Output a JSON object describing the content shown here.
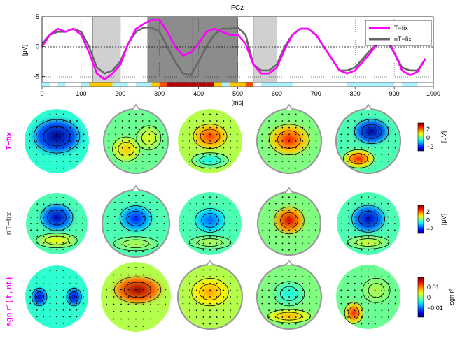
{
  "chart_data": {
    "type": "line",
    "title": "FCz",
    "xlabel": "[ms]",
    "ylabel": "[μV]",
    "xlim": [
      0,
      1000
    ],
    "ylim": [
      -6,
      5
    ],
    "xticks": [
      "0",
      "100",
      "200",
      "300",
      "400",
      "500",
      "600",
      "700",
      "800",
      "900",
      "1000"
    ],
    "yticks": [
      "5",
      "0",
      "-5"
    ],
    "x": [
      0,
      20,
      40,
      60,
      80,
      100,
      120,
      140,
      160,
      180,
      200,
      220,
      240,
      260,
      280,
      300,
      320,
      340,
      360,
      380,
      400,
      420,
      440,
      460,
      480,
      500,
      520,
      540,
      560,
      580,
      600,
      620,
      640,
      660,
      680,
      700,
      720,
      740,
      760,
      780,
      800,
      820,
      840,
      860,
      880,
      900,
      920,
      940,
      960,
      980
    ],
    "series": [
      {
        "name": "T−fix",
        "color": "#ff00ff",
        "values": [
          0,
          2,
          3,
          2.5,
          3,
          2,
          -1,
          -4.5,
          -5.5,
          -4.5,
          -3,
          0.5,
          3,
          3.8,
          4.5,
          4.5,
          2.5,
          0,
          -1.5,
          -1,
          0.5,
          2.5,
          3,
          2.5,
          2,
          2,
          0.5,
          -3,
          -4.5,
          -4.5,
          -3.5,
          -0.5,
          2,
          3,
          3,
          2,
          0,
          -2,
          -4,
          -4.5,
          -4,
          -2.5,
          -1,
          1,
          1.5,
          -1,
          -4,
          -4.8,
          -4.2,
          -2
        ]
      },
      {
        "name": "nT−fix",
        "color": "#666666",
        "values": [
          0.5,
          2,
          2.5,
          2.5,
          3,
          2.5,
          0,
          -3.5,
          -4.5,
          -4,
          -2.5,
          0.5,
          2.5,
          3.2,
          3.2,
          2.5,
          0,
          -2.5,
          -4.5,
          -4.8,
          -2.5,
          0,
          2,
          3,
          3,
          3.2,
          2,
          -3,
          -4,
          -4,
          -3,
          0,
          2,
          3,
          3,
          2,
          0,
          -2,
          -4,
          -4,
          -3.5,
          -2,
          -0.5,
          0.5,
          1,
          -1,
          -3.5,
          -4,
          -4,
          -2
        ]
      }
    ],
    "shaded_intervals_ms": [
      [
        130,
        200
      ],
      [
        270,
        385
      ],
      [
        385,
        500
      ],
      [
        540,
        600
      ]
    ],
    "legend_placement": "top-right",
    "topomap_rows": [
      {
        "label": "T−fix",
        "label_color": "#ff00ff",
        "colorbar_ticks": [
          "2",
          "0",
          "−2"
        ],
        "colorbar_label": "[μV]"
      },
      {
        "label": "nT−fix",
        "label_color": "#777777",
        "colorbar_ticks": [
          "2",
          "0",
          "−2"
        ],
        "colorbar_label": "[μV]"
      },
      {
        "label": "sgn r² ( t , nt )",
        "label_color": "#ff00ff",
        "colorbar_ticks": [
          "0.01",
          "0",
          "−0.01"
        ],
        "colorbar_label": "sgn r²"
      }
    ],
    "topomaps": [
      [
        {
          "bg": 0.42,
          "blobs": [
            {
              "x": 0.0,
              "y": -0.15,
              "rx": 0.75,
              "ry": 0.55,
              "v": 0.0
            }
          ]
        },
        {
          "bg": 0.48,
          "blobs": [
            {
              "x": -0.3,
              "y": 0.25,
              "rx": 0.45,
              "ry": 0.4,
              "v": 0.68
            },
            {
              "x": 0.4,
              "y": -0.1,
              "rx": 0.4,
              "ry": 0.4,
              "v": 0.6
            }
          ]
        },
        {
          "bg": 0.55,
          "blobs": [
            {
              "x": 0.0,
              "y": -0.15,
              "rx": 0.55,
              "ry": 0.4,
              "v": 0.82
            },
            {
              "x": 0.0,
              "y": 0.6,
              "rx": 0.6,
              "ry": 0.25,
              "v": 0.38
            }
          ]
        },
        {
          "bg": 0.5,
          "blobs": [
            {
              "x": 0.0,
              "y": -0.05,
              "rx": 0.65,
              "ry": 0.5,
              "v": 0.85
            }
          ]
        },
        {
          "bg": 0.45,
          "blobs": [
            {
              "x": 0.1,
              "y": -0.3,
              "rx": 0.55,
              "ry": 0.4,
              "v": 0.02
            },
            {
              "x": -0.3,
              "y": 0.55,
              "rx": 0.5,
              "ry": 0.3,
              "v": 0.85
            }
          ]
        }
      ],
      [
        {
          "bg": 0.45,
          "blobs": [
            {
              "x": 0.0,
              "y": -0.2,
              "rx": 0.55,
              "ry": 0.45,
              "v": 0.05
            },
            {
              "x": 0.0,
              "y": 0.55,
              "rx": 0.7,
              "ry": 0.25,
              "v": 0.62
            }
          ]
        },
        {
          "bg": 0.45,
          "blobs": [
            {
              "x": 0.0,
              "y": -0.15,
              "rx": 0.5,
              "ry": 0.4,
              "v": 0.15
            },
            {
              "x": 0.0,
              "y": 0.6,
              "rx": 0.7,
              "ry": 0.22,
              "v": 0.55
            }
          ]
        },
        {
          "bg": 0.45,
          "blobs": [
            {
              "x": 0.0,
              "y": -0.1,
              "rx": 0.5,
              "ry": 0.4,
              "v": 0.22
            },
            {
              "x": 0.0,
              "y": 0.6,
              "rx": 0.7,
              "ry": 0.22,
              "v": 0.55
            }
          ]
        },
        {
          "bg": 0.5,
          "blobs": [
            {
              "x": 0.0,
              "y": -0.1,
              "rx": 0.5,
              "ry": 0.45,
              "v": 0.92
            }
          ]
        },
        {
          "bg": 0.45,
          "blobs": [
            {
              "x": 0.0,
              "y": -0.15,
              "rx": 0.55,
              "ry": 0.45,
              "v": 0.05
            },
            {
              "x": 0.0,
              "y": 0.6,
              "rx": 0.7,
              "ry": 0.22,
              "v": 0.58
            }
          ]
        }
      ],
      [
        {
          "bg": 0.42,
          "blobs": [
            {
              "x": -0.55,
              "y": 0.0,
              "rx": 0.25,
              "ry": 0.3,
              "v": 0.08
            },
            {
              "x": 0.55,
              "y": 0.0,
              "rx": 0.25,
              "ry": 0.3,
              "v": 0.08
            }
          ]
        },
        {
          "bg": 0.55,
          "blobs": [
            {
              "x": 0.05,
              "y": -0.2,
              "rx": 0.7,
              "ry": 0.4,
              "v": 0.98
            }
          ]
        },
        {
          "bg": 0.55,
          "blobs": [
            {
              "x": 0.0,
              "y": -0.15,
              "rx": 0.6,
              "ry": 0.45,
              "v": 0.72
            }
          ]
        },
        {
          "bg": 0.5,
          "blobs": [
            {
              "x": 0.0,
              "y": -0.1,
              "rx": 0.5,
              "ry": 0.4,
              "v": 0.4
            },
            {
              "x": 0.0,
              "y": 0.6,
              "rx": 0.7,
              "ry": 0.22,
              "v": 0.7
            }
          ]
        },
        {
          "bg": 0.48,
          "blobs": [
            {
              "x": -0.45,
              "y": 0.5,
              "rx": 0.3,
              "ry": 0.35,
              "v": 0.85
            },
            {
              "x": 0.25,
              "y": -0.2,
              "rx": 0.45,
              "ry": 0.4,
              "v": 0.55
            }
          ]
        }
      ]
    ]
  }
}
